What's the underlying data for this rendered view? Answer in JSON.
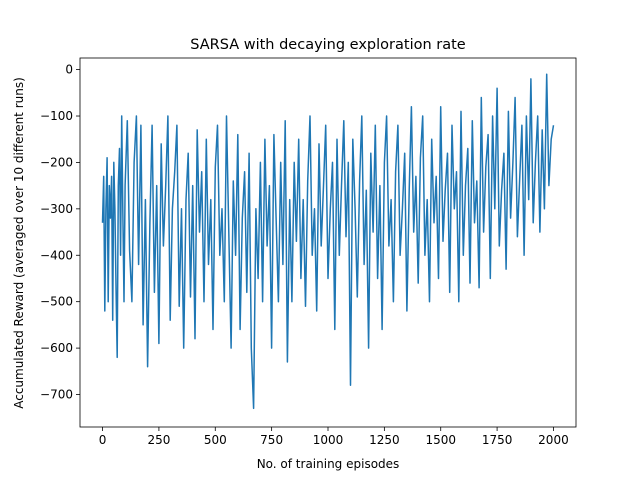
{
  "chart_data": {
    "type": "line",
    "title": "SARSA with decaying exploration rate",
    "xlabel": "No. of training episodes",
    "ylabel": "Accumulated Reward (averaged over 10 different runs)",
    "xlim": [
      -100,
      2100
    ],
    "ylim": [
      -770,
      25
    ],
    "xticks": [
      0,
      250,
      500,
      750,
      1000,
      1250,
      1500,
      1750,
      2000
    ],
    "yticks": [
      0,
      -100,
      -200,
      -300,
      -400,
      -500,
      -600,
      -700
    ],
    "grid": false,
    "legend": "none",
    "series": [
      {
        "color": "#1f77b4",
        "x": [
          0,
          5,
          10,
          15,
          20,
          25,
          30,
          35,
          40,
          45,
          50,
          55,
          60,
          65,
          70,
          75,
          80,
          85,
          90,
          95,
          100,
          110,
          120,
          130,
          140,
          150,
          160,
          170,
          180,
          190,
          200,
          210,
          220,
          230,
          240,
          250,
          260,
          270,
          280,
          290,
          300,
          310,
          320,
          330,
          340,
          350,
          360,
          370,
          380,
          390,
          400,
          410,
          420,
          430,
          440,
          450,
          460,
          470,
          480,
          490,
          500,
          510,
          520,
          530,
          540,
          550,
          560,
          570,
          580,
          590,
          600,
          610,
          620,
          630,
          640,
          650,
          660,
          670,
          680,
          690,
          700,
          710,
          720,
          730,
          740,
          750,
          760,
          770,
          780,
          790,
          800,
          810,
          820,
          830,
          840,
          850,
          860,
          870,
          880,
          890,
          900,
          910,
          920,
          930,
          940,
          950,
          960,
          970,
          980,
          990,
          1000,
          1010,
          1020,
          1030,
          1040,
          1050,
          1060,
          1070,
          1080,
          1090,
          1100,
          1110,
          1120,
          1130,
          1140,
          1150,
          1160,
          1170,
          1180,
          1190,
          1200,
          1210,
          1220,
          1230,
          1240,
          1250,
          1260,
          1270,
          1280,
          1290,
          1300,
          1310,
          1320,
          1330,
          1340,
          1350,
          1360,
          1370,
          1380,
          1390,
          1400,
          1410,
          1420,
          1430,
          1440,
          1450,
          1460,
          1470,
          1480,
          1490,
          1500,
          1510,
          1520,
          1530,
          1540,
          1550,
          1560,
          1570,
          1580,
          1590,
          1600,
          1610,
          1620,
          1630,
          1640,
          1650,
          1660,
          1670,
          1680,
          1690,
          1700,
          1710,
          1720,
          1730,
          1740,
          1750,
          1760,
          1770,
          1780,
          1790,
          1800,
          1810,
          1820,
          1830,
          1840,
          1850,
          1860,
          1870,
          1880,
          1890,
          1900,
          1910,
          1920,
          1930,
          1940,
          1950,
          1960,
          1970,
          1980,
          1990,
          2000
        ],
        "y": [
          -330,
          -230,
          -520,
          -300,
          -190,
          -500,
          -250,
          -320,
          -230,
          -540,
          -200,
          -300,
          -480,
          -620,
          -250,
          -170,
          -400,
          -100,
          -300,
          -500,
          -250,
          -110,
          -390,
          -500,
          -200,
          -100,
          -420,
          -120,
          -550,
          -280,
          -640,
          -330,
          -120,
          -480,
          -250,
          -590,
          -160,
          -380,
          -250,
          -100,
          -540,
          -300,
          -220,
          -120,
          -510,
          -300,
          -600,
          -280,
          -180,
          -490,
          -250,
          -580,
          -130,
          -350,
          -220,
          -500,
          -150,
          -420,
          -280,
          -560,
          -210,
          -120,
          -400,
          -300,
          -500,
          -100,
          -350,
          -600,
          -240,
          -400,
          -140,
          -560,
          -320,
          -220,
          -480,
          -180,
          -600,
          -730,
          -300,
          -450,
          -200,
          -500,
          -150,
          -380,
          -250,
          -600,
          -140,
          -320,
          -500,
          -200,
          -420,
          -110,
          -630,
          -280,
          -500,
          -200,
          -370,
          -150,
          -450,
          -280,
          -510,
          -240,
          -100,
          -400,
          -300,
          -520,
          -160,
          -380,
          -250,
          -120,
          -450,
          -300,
          -200,
          -560,
          -150,
          -400,
          -250,
          -110,
          -360,
          -200,
          -680,
          -150,
          -300,
          -490,
          -240,
          -100,
          -420,
          -260,
          -600,
          -180,
          -350,
          -120,
          -450,
          -250,
          -560,
          -200,
          -100,
          -380,
          -280,
          -500,
          -220,
          -120,
          -400,
          -300,
          -180,
          -520,
          -260,
          -80,
          -350,
          -230,
          -460,
          -190,
          -100,
          -400,
          -280,
          -500,
          -150,
          -330,
          -230,
          -450,
          -80,
          -370,
          -260,
          -180,
          -480,
          -120,
          -300,
          -220,
          -500,
          -90,
          -400,
          -250,
          -170,
          -460,
          -110,
          -330,
          -240,
          -470,
          -60,
          -350,
          -210,
          -140,
          -450,
          -100,
          -300,
          -40,
          -380,
          -260,
          -180,
          -430,
          -90,
          -320,
          -200,
          -60,
          -360,
          -240,
          -120,
          -400,
          -100,
          -280,
          -20,
          -330,
          -200,
          -100,
          -350,
          -130,
          -300,
          -10,
          -250,
          -150,
          -120
        ]
      }
    ]
  }
}
